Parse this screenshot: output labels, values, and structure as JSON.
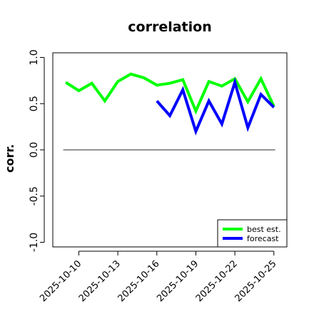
{
  "chart_data": {
    "type": "line",
    "title": "correlation",
    "ylabel": "corr.",
    "ylim": [
      -1.05,
      1.05
    ],
    "yticks": [
      "-1.0",
      "-0.5",
      "0.0",
      "0.5",
      "1.0"
    ],
    "ytick_values": [
      -1.0,
      -0.5,
      0.0,
      0.5,
      1.0
    ],
    "xlim": [
      0,
      18
    ],
    "xticks": [
      {
        "label": "2025-10-10",
        "x": 2,
        "color": "#000000"
      },
      {
        "label": "2025-10-13",
        "x": 5,
        "color": "#000000"
      },
      {
        "label": "2025-10-16",
        "x": 8,
        "color": "#228B22"
      },
      {
        "label": "2025-10-19",
        "x": 11,
        "color": "#000000"
      },
      {
        "label": "2025-10-22",
        "x": 14,
        "color": "#000000"
      },
      {
        "label": "2025-10-25",
        "x": 17,
        "color": "#000000"
      }
    ],
    "reference_line": {
      "y": 0.0,
      "x_start": 0.8,
      "x_end": 17.1,
      "color": "#555555"
    },
    "series": [
      {
        "name": "best est.",
        "color": "#00ff00",
        "x": [
          1,
          2,
          3,
          4,
          5,
          6,
          7,
          8,
          9,
          10,
          11,
          12,
          13,
          14,
          15,
          16,
          17
        ],
        "y": [
          0.73,
          0.64,
          0.72,
          0.53,
          0.74,
          0.82,
          0.78,
          0.7,
          0.72,
          0.76,
          0.42,
          0.74,
          0.69,
          0.77,
          0.52,
          0.77,
          0.47
        ]
      },
      {
        "name": "forecast",
        "color": "#0000ff",
        "x": [
          8,
          9,
          10,
          11,
          12,
          13,
          14,
          15,
          16,
          17
        ],
        "y": [
          0.53,
          0.37,
          0.65,
          0.2,
          0.53,
          0.28,
          0.73,
          0.24,
          0.6,
          0.46
        ]
      }
    ],
    "legend": {
      "placement": "bottom-right"
    }
  }
}
